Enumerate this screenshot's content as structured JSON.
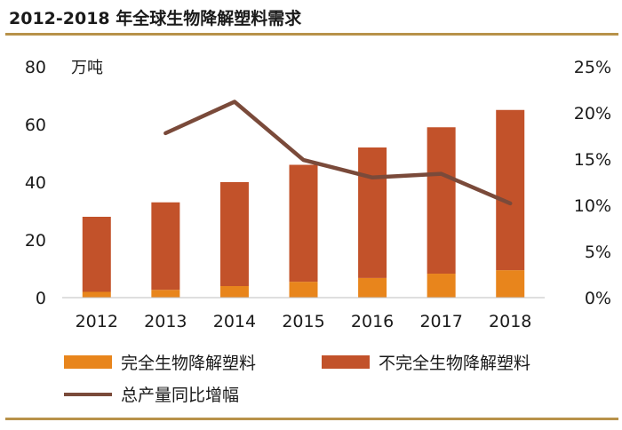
{
  "title": "2012-2018 年全球生物降解塑料需求",
  "colors": {
    "full": "#e8851c",
    "partial": "#c2522a",
    "line": "#7a4a3a",
    "rule": "#b8924a"
  },
  "chart_data": {
    "type": "bar",
    "stacked": true,
    "title": "2012-2018 年全球生物降解塑料需求",
    "categories": [
      "2012",
      "2013",
      "2014",
      "2015",
      "2016",
      "2017",
      "2018"
    ],
    "y_left": {
      "unit_label": "万吨",
      "ylim": [
        0,
        80
      ],
      "ticks": [
        "0",
        "20",
        "40",
        "60",
        "80"
      ],
      "tick_values": [
        0,
        20,
        40,
        60,
        80
      ]
    },
    "y_right": {
      "ylim": [
        0,
        25
      ],
      "ticks": [
        "0%",
        "5%",
        "10%",
        "15%",
        "20%",
        "25%"
      ],
      "tick_values": [
        0,
        5,
        10,
        15,
        20,
        25
      ]
    },
    "series": [
      {
        "name": "完全生物降解塑料",
        "type": "bar",
        "axis": "left",
        "values": [
          2,
          2.7,
          4,
          5.5,
          6.8,
          8.3,
          9.5
        ]
      },
      {
        "name": "不完全生物降解塑料",
        "type": "bar",
        "axis": "left",
        "values": [
          26,
          30.3,
          36,
          40.5,
          45.2,
          50.7,
          55.5
        ]
      },
      {
        "name": "总产量同比增幅",
        "type": "line",
        "axis": "right",
        "values": [
          null,
          17.8,
          21.2,
          14.9,
          13.0,
          13.4,
          10.2
        ]
      }
    ],
    "legend": [
      "完全生物降解塑料",
      "不完全生物降解塑料",
      "总产量同比增幅"
    ],
    "legend_position": "bottom",
    "grid": false
  }
}
